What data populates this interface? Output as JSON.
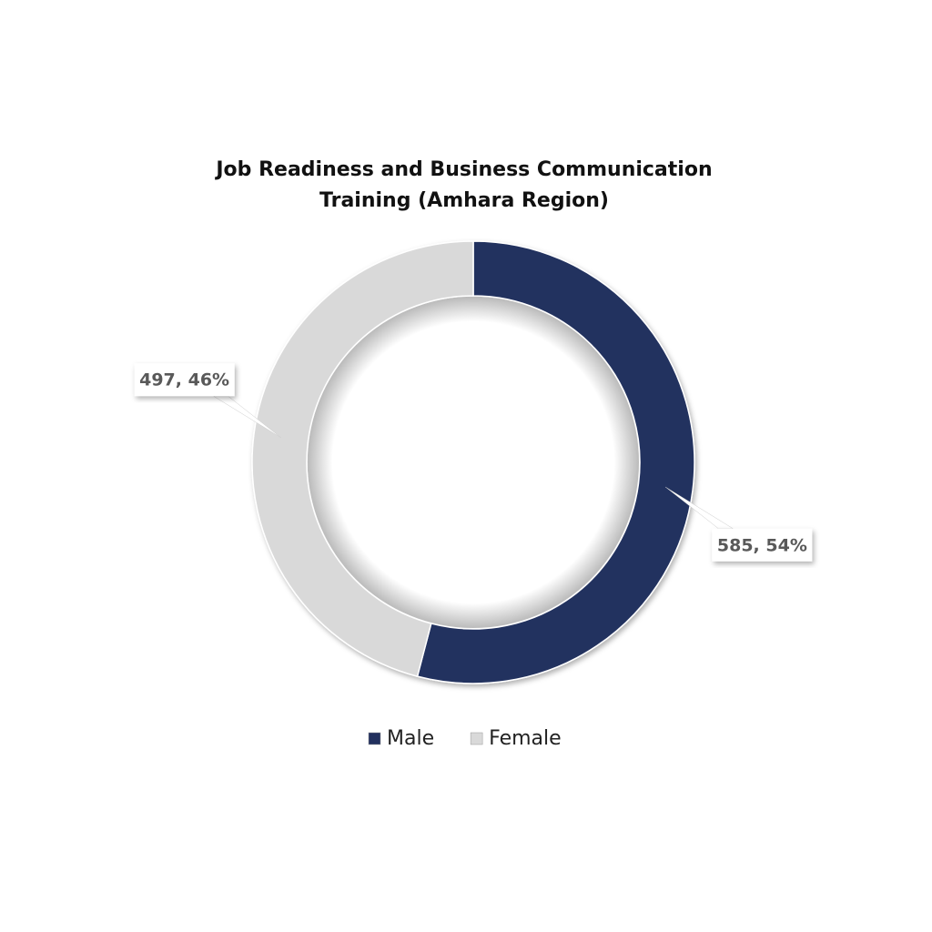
{
  "chart_data": {
    "type": "donut",
    "title": "Job Readiness and Business Communication Training (Amhara Region)",
    "categories": [
      "Male",
      "Female"
    ],
    "values": [
      585,
      497
    ],
    "value_labels": [
      "585, 54%",
      "497, 46%"
    ],
    "colors": [
      "#22305e",
      "#d9d9d9"
    ],
    "legend": "bottom"
  }
}
